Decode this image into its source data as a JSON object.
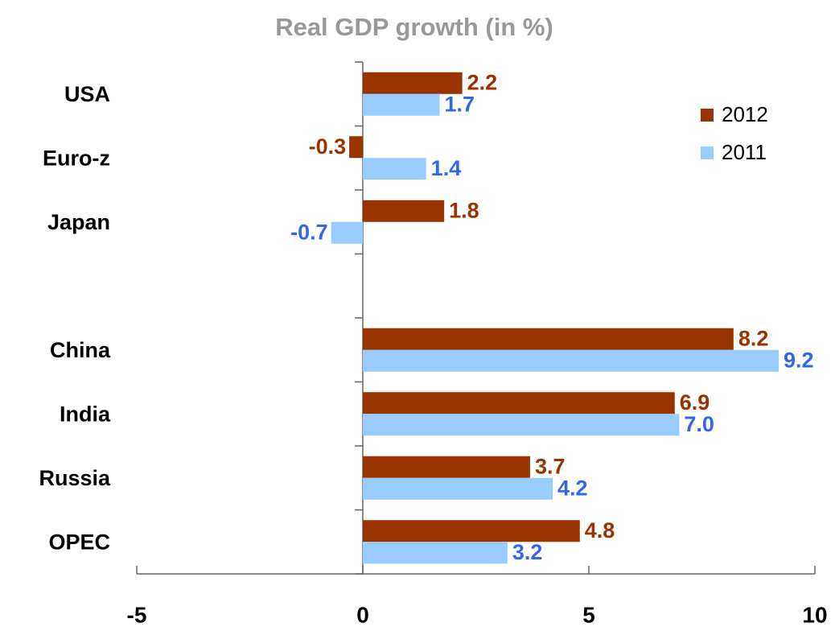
{
  "chart_data": {
    "type": "bar",
    "orientation": "horizontal",
    "title": "Real GDP growth (in %)",
    "categories": [
      "USA",
      "Euro-z",
      "Japan",
      null,
      "China",
      "India",
      "Russia",
      "OPEC"
    ],
    "series": [
      {
        "name": "2012",
        "color": "#993300",
        "label_color": "#993300",
        "values": [
          2.2,
          -0.3,
          1.8,
          null,
          8.2,
          6.9,
          3.7,
          4.8
        ],
        "value_labels": [
          "2.2",
          "-0.3",
          "1.8",
          null,
          "8.2",
          "6.9",
          "3.7",
          "4.8"
        ]
      },
      {
        "name": "2011",
        "color": "#99ccff",
        "label_color": "#3366ee",
        "values": [
          1.7,
          1.4,
          -0.7,
          null,
          9.2,
          7.0,
          4.2,
          3.2
        ],
        "value_labels": [
          "1.7",
          "1.4",
          "-0.7",
          null,
          "9.2",
          "7.0",
          "4.2",
          "3.2"
        ]
      }
    ],
    "xlim": [
      -5,
      10
    ],
    "xticks": [
      -5,
      0,
      5,
      10
    ],
    "legend": "upper right"
  }
}
